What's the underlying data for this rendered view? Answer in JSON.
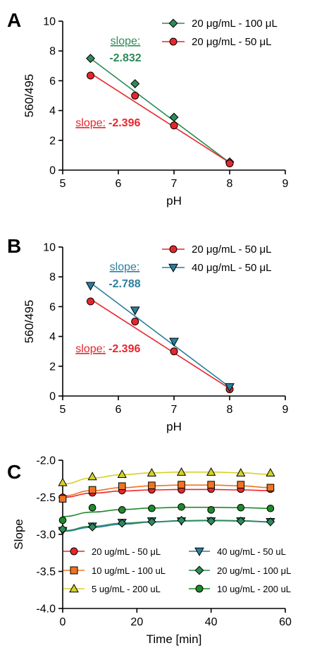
{
  "chart_data": [
    {
      "panel": "A",
      "type": "line",
      "xlabel": "pH",
      "ylabel": "560/495",
      "xlim": [
        5,
        9
      ],
      "ylim": [
        0,
        10
      ],
      "xticks": [
        5,
        6,
        7,
        8,
        9
      ],
      "yticks": [
        0,
        2,
        4,
        6,
        8,
        10
      ],
      "legend_position": "top-right",
      "series": [
        {
          "name": "20 μg/mL - 100 μL",
          "color": "#2e8b57",
          "marker": "diamond",
          "points": [
            [
              5.5,
              7.5
            ],
            [
              6.3,
              5.8
            ],
            [
              7.0,
              3.55
            ],
            [
              8.0,
              0.55
            ]
          ],
          "fit": [
            [
              5.5,
              7.5
            ],
            [
              8.0,
              0.5
            ]
          ]
        },
        {
          "name": "20 μg/mL - 50 μL",
          "color": "#e8262a",
          "marker": "circle",
          "points": [
            [
              5.5,
              6.35
            ],
            [
              6.3,
              5.0
            ],
            [
              7.0,
              3.0
            ],
            [
              8.0,
              0.45
            ]
          ],
          "fit": [
            [
              5.5,
              6.5
            ],
            [
              8.0,
              0.5
            ]
          ]
        }
      ],
      "annotations": [
        {
          "label": "slope:",
          "value": "-2.832",
          "color": "#2e8b57"
        },
        {
          "label": "slope:",
          "value": "-2.396",
          "color": "#e8262a"
        }
      ]
    },
    {
      "panel": "B",
      "type": "line",
      "xlabel": "pH",
      "ylabel": "560/495",
      "xlim": [
        5,
        9
      ],
      "ylim": [
        0,
        10
      ],
      "xticks": [
        5,
        6,
        7,
        8,
        9
      ],
      "yticks": [
        0,
        2,
        4,
        6,
        8,
        10
      ],
      "legend_position": "top-right",
      "series": [
        {
          "name": "20 μg/mL - 50 μL",
          "color": "#e8262a",
          "marker": "circle",
          "points": [
            [
              5.5,
              6.35
            ],
            [
              6.3,
              5.0
            ],
            [
              7.0,
              3.0
            ],
            [
              8.0,
              0.45
            ]
          ],
          "fit": [
            [
              5.5,
              6.5
            ],
            [
              8.0,
              0.5
            ]
          ]
        },
        {
          "name": "40 μg/mL - 50 μL",
          "color": "#2a7f9e",
          "marker": "triangle-down",
          "points": [
            [
              5.5,
              7.4
            ],
            [
              6.3,
              5.75
            ],
            [
              7.0,
              3.65
            ],
            [
              8.0,
              0.6
            ]
          ],
          "fit": [
            [
              5.5,
              7.6
            ],
            [
              8.0,
              0.6
            ]
          ]
        }
      ],
      "annotations": [
        {
          "label": "slope:",
          "value": "-2.788",
          "color": "#2a7f9e"
        },
        {
          "label": "slope:",
          "value": "-2.396",
          "color": "#e8262a"
        }
      ]
    },
    {
      "panel": "C",
      "type": "scatter",
      "xlabel": "Time [min]",
      "ylabel": "Slope",
      "xlim": [
        0,
        60
      ],
      "ylim": [
        -4.0,
        -2.0
      ],
      "xticks": [
        0,
        20,
        40,
        60
      ],
      "yticks": [
        -4.0,
        -3.5,
        -3.0,
        -2.5,
        -2.0
      ],
      "xtick_labels": [
        "0",
        "20",
        "40",
        "60"
      ],
      "ytick_labels": [
        "-4.0",
        "-3.5",
        "-3.0",
        "-2.5",
        "-2.0"
      ],
      "legend_position": "bottom",
      "x": [
        0,
        8,
        16,
        24,
        32,
        40,
        48,
        56
      ],
      "series": [
        {
          "name": "20 ug/mL - 50 μL",
          "color": "#e8262a",
          "marker": "circle",
          "values": [
            -2.5,
            -2.44,
            -2.41,
            -2.4,
            -2.4,
            -2.39,
            -2.39,
            -2.39
          ],
          "fit": [
            -2.5,
            -2.445,
            -2.415,
            -2.4,
            -2.395,
            -2.395,
            -2.4,
            -2.41
          ]
        },
        {
          "name": "10 ug/mL - 100 uL",
          "color": "#f07320",
          "marker": "square",
          "values": [
            -2.52,
            -2.4,
            -2.35,
            -2.34,
            -2.33,
            -2.33,
            -2.33,
            -2.37
          ],
          "fit": [
            -2.48,
            -2.41,
            -2.37,
            -2.345,
            -2.335,
            -2.335,
            -2.345,
            -2.37
          ]
        },
        {
          "name": "5 ug/mL - 200 uL",
          "color": "#d4d22a",
          "marker": "triangle-up",
          "values": [
            -2.3,
            -2.22,
            -2.19,
            -2.17,
            -2.16,
            -2.16,
            -2.17,
            -2.17
          ],
          "fit": [
            -2.32,
            -2.24,
            -2.195,
            -2.17,
            -2.16,
            -2.16,
            -2.17,
            -2.19
          ]
        },
        {
          "name": "40 ug/mL - 50 uL",
          "color": "#2a7f9e",
          "marker": "triangle-down",
          "values": [
            -2.95,
            -2.89,
            -2.84,
            -2.82,
            -2.82,
            -2.82,
            -2.82,
            -2.83
          ],
          "fit": [
            -2.96,
            -2.905,
            -2.865,
            -2.835,
            -2.82,
            -2.815,
            -2.82,
            -2.835
          ]
        },
        {
          "name": "20 ug/mL - 100 μL",
          "color": "#2e8b57",
          "marker": "diamond",
          "values": [
            -2.93,
            -2.9,
            -2.85,
            -2.83,
            -2.81,
            -2.82,
            -2.82,
            -2.83
          ],
          "fit": [
            -2.95,
            -2.89,
            -2.85,
            -2.83,
            -2.815,
            -2.81,
            -2.815,
            -2.83
          ]
        },
        {
          "name": "10 ug/mL - 200 uL",
          "color": "#1e8a2a",
          "marker": "circle",
          "values": [
            -2.81,
            -2.64,
            -2.67,
            -2.65,
            -2.63,
            -2.67,
            -2.64,
            -2.65
          ],
          "fit": [
            -2.76,
            -2.7,
            -2.665,
            -2.645,
            -2.635,
            -2.635,
            -2.64,
            -2.65
          ]
        }
      ]
    }
  ],
  "panels": {
    "A": {
      "letter": "A"
    },
    "B": {
      "letter": "B"
    },
    "C": {
      "letter": "C"
    }
  }
}
